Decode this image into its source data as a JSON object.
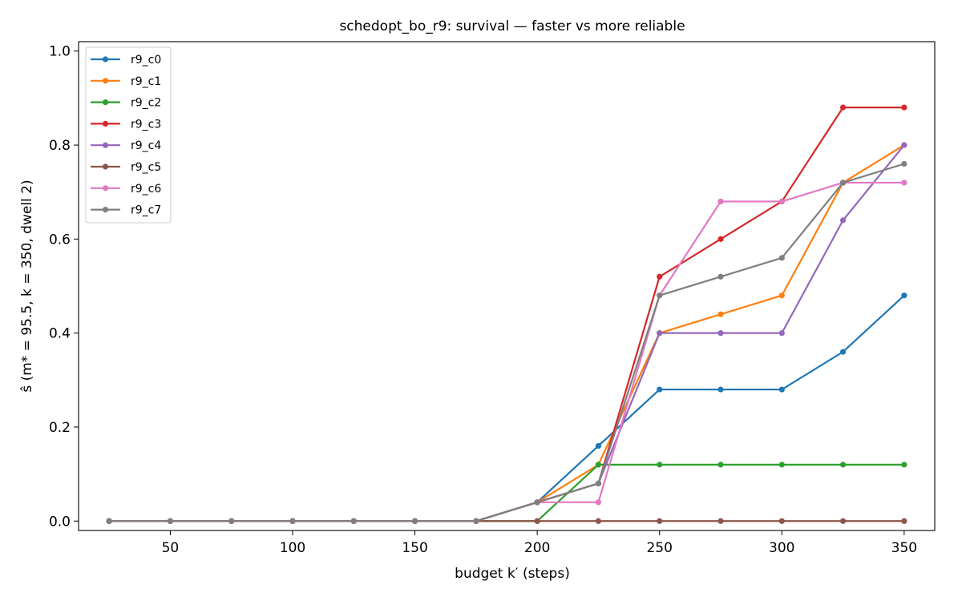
{
  "chart_data": {
    "type": "line",
    "title": "schedopt_bo_r9: survival — faster vs more reliable",
    "xlabel": "budget k′ (steps)",
    "ylabel": "ŝ (m* = 95.5, k = 350, dwell 2)",
    "xlim": [
      12.5,
      362.5
    ],
    "ylim": [
      -0.02,
      1.02
    ],
    "xticks": [
      50,
      100,
      150,
      200,
      250,
      300,
      350
    ],
    "yticks": [
      0.0,
      0.2,
      0.4,
      0.6,
      0.8,
      1.0
    ],
    "xtick_labels": [
      "50",
      "100",
      "150",
      "200",
      "250",
      "300",
      "350"
    ],
    "ytick_labels": [
      "0.0",
      "0.2",
      "0.4",
      "0.6",
      "0.8",
      "1.0"
    ],
    "grid": false,
    "legend_position": "top-left",
    "x": [
      25,
      50,
      75,
      100,
      125,
      150,
      175,
      200,
      225,
      250,
      275,
      300,
      325,
      350
    ],
    "series": [
      {
        "name": "r9_c0",
        "color": "#1f77b4",
        "values": [
          0,
          0,
          0,
          0,
          0,
          0,
          0,
          0.04,
          0.16,
          0.28,
          0.28,
          0.28,
          0.36,
          0.48
        ]
      },
      {
        "name": "r9_c1",
        "color": "#ff7f0e",
        "values": [
          0,
          0,
          0,
          0,
          0,
          0,
          0,
          0.04,
          0.12,
          0.4,
          0.44,
          0.48,
          0.72,
          0.8
        ]
      },
      {
        "name": "r9_c2",
        "color": "#2ca02c",
        "values": [
          0,
          0,
          0,
          0,
          0,
          0,
          0,
          0,
          0.12,
          0.12,
          0.12,
          0.12,
          0.12,
          0.12
        ]
      },
      {
        "name": "r9_c3",
        "color": "#d62728",
        "values": [
          0,
          0,
          0,
          0,
          0,
          0,
          0,
          0.04,
          0.08,
          0.52,
          0.6,
          0.68,
          0.88,
          0.88
        ]
      },
      {
        "name": "r9_c4",
        "color": "#9467bd",
        "values": [
          0,
          0,
          0,
          0,
          0,
          0,
          0,
          0.04,
          0.08,
          0.4,
          0.4,
          0.4,
          0.64,
          0.8
        ]
      },
      {
        "name": "r9_c5",
        "color": "#8c564b",
        "values": [
          0,
          0,
          0,
          0,
          0,
          0,
          0,
          0,
          0,
          0,
          0,
          0,
          0,
          0
        ]
      },
      {
        "name": "r9_c6",
        "color": "#e377c2",
        "values": [
          0,
          0,
          0,
          0,
          0,
          0,
          0,
          0.04,
          0.04,
          0.48,
          0.68,
          0.68,
          0.72,
          0.72
        ]
      },
      {
        "name": "r9_c7",
        "color": "#7f7f7f",
        "values": [
          0,
          0,
          0,
          0,
          0,
          0,
          0,
          0.04,
          0.08,
          0.48,
          0.52,
          0.56,
          0.72,
          0.76
        ]
      }
    ]
  }
}
